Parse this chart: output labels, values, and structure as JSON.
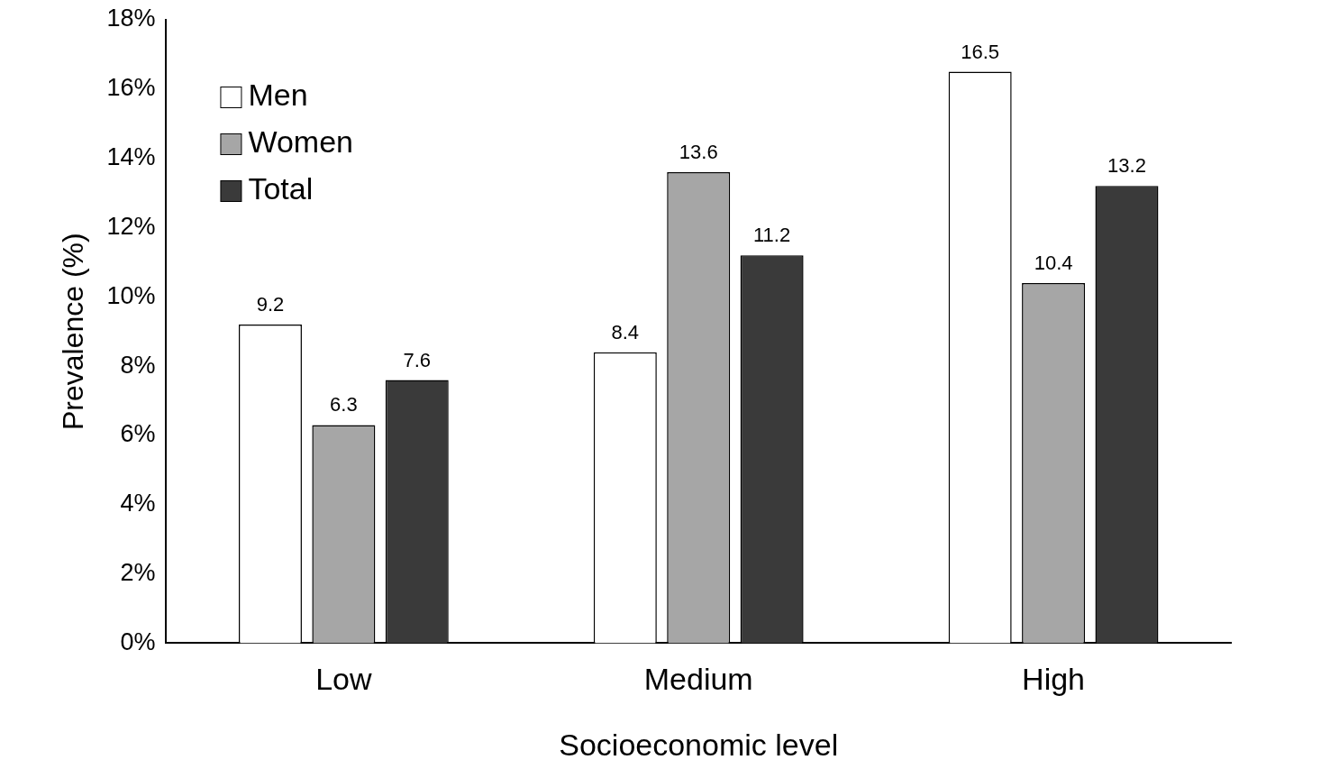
{
  "chart_data": {
    "type": "bar",
    "xlabel": "Socioeconomic level",
    "ylabel": "Prevalence (%)",
    "categories": [
      "Low",
      "Medium",
      "High"
    ],
    "series": [
      {
        "name": "Men",
        "color": "#ffffff",
        "values": [
          9.2,
          8.4,
          16.5
        ]
      },
      {
        "name": "Women",
        "color": "#a6a6a6",
        "values": [
          6.3,
          13.6,
          10.4
        ]
      },
      {
        "name": "Total",
        "color": "#3a3a3a",
        "values": [
          7.6,
          11.2,
          13.2
        ]
      }
    ],
    "ylim": [
      0,
      18
    ],
    "yticks": [
      {
        "value": 0,
        "label": "0%"
      },
      {
        "value": 2,
        "label": "2%"
      },
      {
        "value": 4,
        "label": "4%"
      },
      {
        "value": 6,
        "label": "6%"
      },
      {
        "value": 8,
        "label": "8%"
      },
      {
        "value": 10,
        "label": "10%"
      },
      {
        "value": 12,
        "label": "12%"
      },
      {
        "value": 14,
        "label": "14%"
      },
      {
        "value": 16,
        "label": "16%"
      },
      {
        "value": 18,
        "label": "18%"
      }
    ],
    "data_labels": true,
    "legend": "top left",
    "grid": false
  }
}
